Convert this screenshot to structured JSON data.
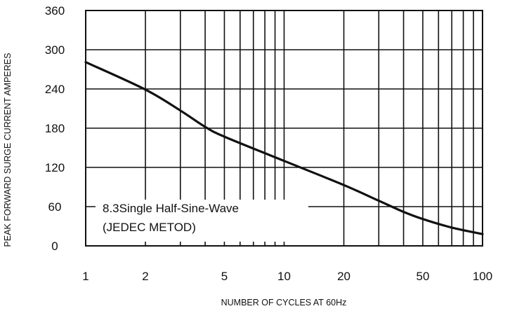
{
  "chart_data": {
    "type": "line",
    "xlabel": "NUMBER OF CYCLES AT 60Hz",
    "ylabel": "PEAK FORWARD  SURGE CURRENT AMPERES",
    "x_scale": "log",
    "xlim": [
      1,
      100
    ],
    "ylim": [
      0,
      360
    ],
    "grid": true,
    "x_ticks": [
      1,
      2,
      5,
      10,
      20,
      50,
      100
    ],
    "x_tick_labels": [
      "1",
      "2",
      "5",
      "10",
      "20",
      "50",
      "100"
    ],
    "x_minor_gridlines": [
      3,
      4,
      6,
      7,
      8,
      9,
      30,
      40,
      60,
      70,
      80,
      90
    ],
    "y_ticks": [
      0,
      60,
      120,
      180,
      240,
      300,
      360
    ],
    "y_tick_labels": [
      "0",
      "60",
      "120",
      "180",
      "240",
      "300",
      "360"
    ],
    "annotation": [
      "8.3Single Half-Sine-Wave",
      "(JEDEC METOD)"
    ],
    "series": [
      {
        "x": [
          1,
          2,
          3,
          4,
          5,
          10,
          20,
          30,
          40,
          50,
          70,
          100
        ],
        "y": [
          281,
          239,
          207,
          182,
          167,
          130,
          93,
          69,
          52,
          41,
          28,
          18
        ]
      }
    ],
    "colors": {
      "line": "#111111",
      "grid": "#111111",
      "background": "#ffffff"
    }
  }
}
